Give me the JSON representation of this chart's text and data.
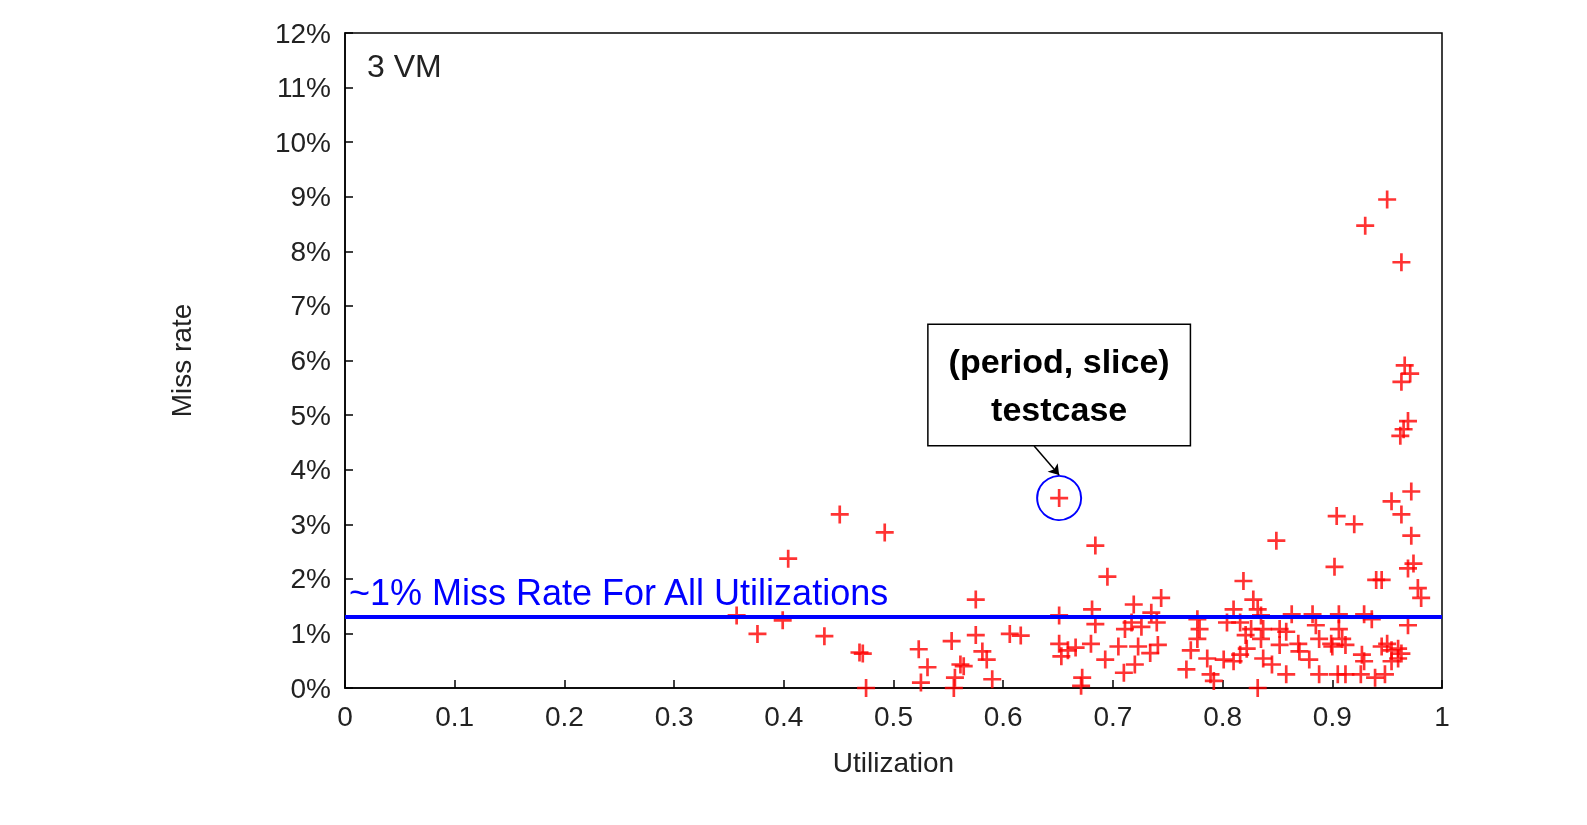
{
  "chart_data": {
    "type": "scatter",
    "title": "3 VM",
    "xlabel": "Utilization",
    "ylabel": "Miss rate",
    "marker": "cross",
    "grid": false,
    "xlim": [
      0,
      1
    ],
    "xticks": [
      0,
      0.1,
      0.2,
      0.3,
      0.4,
      0.5,
      0.6,
      0.7,
      0.8,
      0.9,
      1
    ],
    "ylim": [
      0,
      12
    ],
    "yticks": [
      {
        "value": 0,
        "label": "0%"
      },
      {
        "value": 1,
        "label": "1%"
      },
      {
        "value": 2,
        "label": "2%"
      },
      {
        "value": 3,
        "label": "3%"
      },
      {
        "value": 4,
        "label": "4%"
      },
      {
        "value": 5,
        "label": "5%"
      },
      {
        "value": 6,
        "label": "6%"
      },
      {
        "value": 7,
        "label": "7%"
      },
      {
        "value": 8,
        "label": "8%"
      },
      {
        "value": 9,
        "label": "9%"
      },
      {
        "value": 10,
        "label": "10%"
      },
      {
        "value": 11,
        "label": "11%"
      },
      {
        "value": 12,
        "label": "12%"
      }
    ],
    "ref_lines": [
      {
        "axis": "y",
        "value": 1.31,
        "label": "~1% Miss Rate For All Utilizations",
        "color": "#0000ff",
        "line_style": "solid"
      }
    ],
    "annotations": [
      {
        "text": "(period, slice)\ntestcase",
        "x": 0.651,
        "y": 3.48
      }
    ],
    "series": [
      {
        "color": "#ff0000",
        "x": [
          0.451,
          0.492,
          0.404,
          0.357,
          0.376,
          0.399,
          0.437,
          0.469,
          0.472,
          0.475,
          0.523,
          0.531,
          0.525,
          0.553,
          0.561,
          0.564,
          0.556,
          0.555,
          0.575,
          0.575,
          0.581,
          0.585,
          0.59,
          0.606,
          0.616,
          0.651,
          0.651,
          0.651,
          0.653,
          0.684,
          0.695,
          0.681,
          0.684,
          0.659,
          0.666,
          0.68,
          0.693,
          0.672,
          0.671,
          0.719,
          0.717,
          0.711,
          0.726,
          0.735,
          0.74,
          0.705,
          0.723,
          0.741,
          0.734,
          0.72,
          0.71,
          0.744,
          0.777,
          0.779,
          0.777,
          0.771,
          0.767,
          0.786,
          0.789,
          0.792,
          0.801,
          0.81,
          0.819,
          0.81,
          0.804,
          0.816,
          0.821,
          0.828,
          0.832,
          0.835,
          0.826,
          0.837,
          0.835,
          0.822,
          0.816,
          0.837,
          0.845,
          0.832,
          0.849,
          0.852,
          0.858,
          0.863,
          0.852,
          0.869,
          0.858,
          0.87,
          0.882,
          0.885,
          0.888,
          0.879,
          0.888,
          0.902,
          0.904,
          0.92,
          0.906,
          0.906,
          0.909,
          0.899,
          0.9,
          0.912,
          0.905,
          0.912,
          0.929,
          0.936,
          0.94,
          0.945,
          0.927,
          0.929,
          0.926,
          0.939,
          0.948,
          0.945,
          0.95,
          0.954,
          0.96,
          0.963,
          0.954,
          0.96,
          0.969,
          0.969,
          0.974,
          0.978,
          0.981,
          0.954,
          0.963,
          0.972,
          0.972,
          0.95,
          0.93,
          0.963,
          0.966,
          0.971,
          0.963,
          0.969,
          0.965,
          0.962
        ],
        "values": [
          3.18,
          2.85,
          2.37,
          1.33,
          0.99,
          1.24,
          0.95,
          0.65,
          0.63,
          0,
          0.71,
          0.38,
          0.1,
          0.86,
          0.43,
          0.4,
          0.19,
          0,
          1.62,
          0.97,
          0.67,
          0.52,
          0.16,
          0.99,
          0.96,
          3.48,
          1.33,
          0.81,
          0.58,
          2.61,
          2.04,
          1.44,
          1.17,
          0.69,
          0.74,
          0.81,
          0.52,
          0.19,
          0.04,
          1.53,
          1.2,
          1.08,
          1.12,
          1.38,
          1.2,
          0.76,
          0.76,
          0.79,
          0.64,
          0.43,
          0.28,
          1.65,
          1.26,
          1.08,
          0.9,
          0.69,
          0.34,
          0.54,
          0.25,
          0.13,
          0.52,
          0.49,
          1.96,
          1.44,
          1.2,
          1.2,
          0.97,
          1.62,
          1.44,
          1.33,
          1.08,
          1.08,
          0.9,
          0.72,
          0.61,
          0.54,
          0.43,
          0,
          2.7,
          1.08,
          1.03,
          1.35,
          0.79,
          0.81,
          0.25,
          0.67,
          1.35,
          1.15,
          0.9,
          0.52,
          0.25,
          2.22,
          3.15,
          3.0,
          1.35,
          1.08,
          0.9,
          0.81,
          0.76,
          0.79,
          0.25,
          0.25,
          1.35,
          1.26,
          1.98,
          1.98,
          0.61,
          0.49,
          0.25,
          0.19,
          0.25,
          0.76,
          0.81,
          0.69,
          0.72,
          0.63,
          0.49,
          0.54,
          1.15,
          2.19,
          2.28,
          1.83,
          1.65,
          3.42,
          3.18,
          3.6,
          2.79,
          8.95,
          8.47,
          7.8,
          5.91,
          5.76,
          5.61,
          4.89,
          4.74,
          4.62
        ]
      }
    ]
  }
}
